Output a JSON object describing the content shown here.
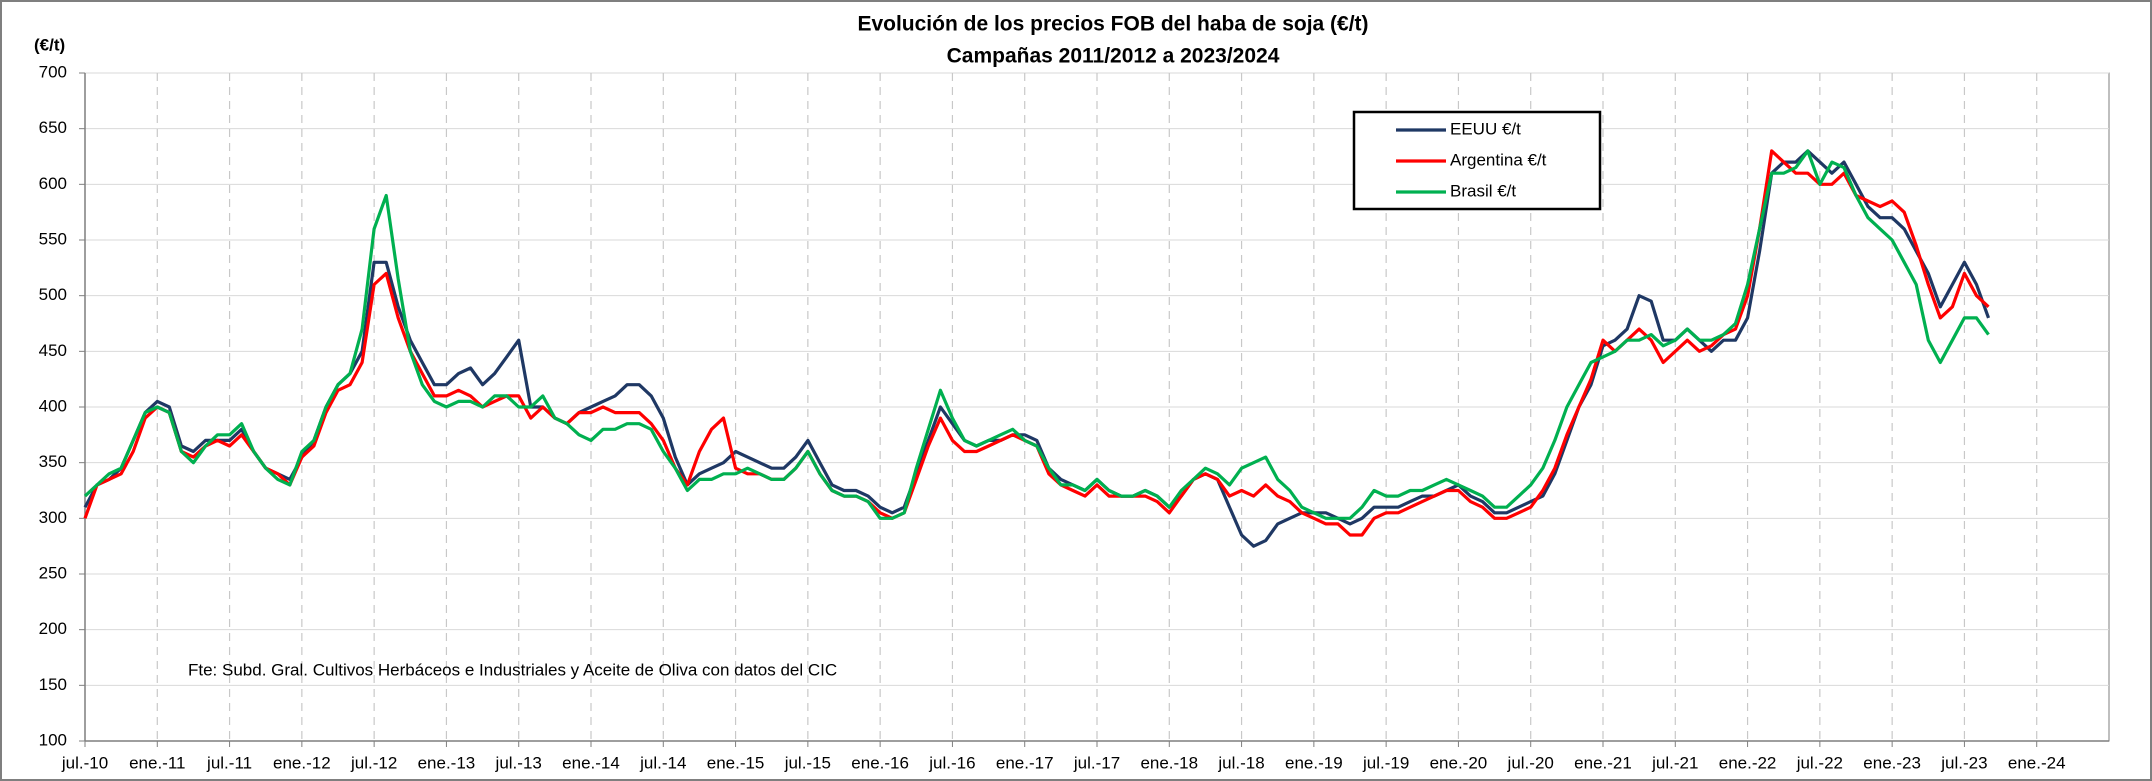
{
  "chart_data": {
    "type": "line",
    "title": "Evolución de los precios FOB del haba de soja (€/t)",
    "subtitle": "Campañas 2011/2012 a 2023/2024",
    "y_label": "(€/t)",
    "annotation": "Fte: Subd. Gral. Cultivos Herbáceos e Industriales y Aceite de Oliva con datos del CIC",
    "ylim": [
      100,
      700
    ],
    "yticks": [
      100,
      150,
      200,
      250,
      300,
      350,
      400,
      450,
      500,
      550,
      600,
      650,
      700
    ],
    "xlim": [
      "2010-07",
      "2024-07"
    ],
    "xticks": [
      {
        "value": "2010-07",
        "label": "jul.-10"
      },
      {
        "value": "2011-01",
        "label": "ene.-11"
      },
      {
        "value": "2011-07",
        "label": "jul.-11"
      },
      {
        "value": "2012-01",
        "label": "ene.-12"
      },
      {
        "value": "2012-07",
        "label": "jul.-12"
      },
      {
        "value": "2013-01",
        "label": "ene.-13"
      },
      {
        "value": "2013-07",
        "label": "jul.-13"
      },
      {
        "value": "2014-01",
        "label": "ene.-14"
      },
      {
        "value": "2014-07",
        "label": "jul.-14"
      },
      {
        "value": "2015-01",
        "label": "ene.-15"
      },
      {
        "value": "2015-07",
        "label": "jul.-15"
      },
      {
        "value": "2016-01",
        "label": "ene.-16"
      },
      {
        "value": "2016-07",
        "label": "jul.-16"
      },
      {
        "value": "2017-01",
        "label": "ene.-17"
      },
      {
        "value": "2017-07",
        "label": "jul.-17"
      },
      {
        "value": "2018-01",
        "label": "ene.-18"
      },
      {
        "value": "2018-07",
        "label": "jul.-18"
      },
      {
        "value": "2019-01",
        "label": "ene.-19"
      },
      {
        "value": "2019-07",
        "label": "jul.-19"
      },
      {
        "value": "2020-01",
        "label": "ene.-20"
      },
      {
        "value": "2020-07",
        "label": "jul.-20"
      },
      {
        "value": "2021-01",
        "label": "ene.-21"
      },
      {
        "value": "2021-07",
        "label": "jul.-21"
      },
      {
        "value": "2022-01",
        "label": "ene.-22"
      },
      {
        "value": "2022-07",
        "label": "jul.-22"
      },
      {
        "value": "2023-01",
        "label": "ene.-23"
      },
      {
        "value": "2023-07",
        "label": "jul.-23"
      },
      {
        "value": "2024-01",
        "label": "ene.-24"
      }
    ],
    "grid": true,
    "legend": "top-right",
    "x": [
      "2010-07",
      "2010-08",
      "2010-09",
      "2010-10",
      "2010-11",
      "2010-12",
      "2011-01",
      "2011-02",
      "2011-03",
      "2011-04",
      "2011-05",
      "2011-06",
      "2011-07",
      "2011-08",
      "2011-09",
      "2011-10",
      "2011-11",
      "2011-12",
      "2012-01",
      "2012-02",
      "2012-03",
      "2012-04",
      "2012-05",
      "2012-06",
      "2012-07",
      "2012-08",
      "2012-09",
      "2012-10",
      "2012-11",
      "2012-12",
      "2013-01",
      "2013-02",
      "2013-03",
      "2013-04",
      "2013-05",
      "2013-06",
      "2013-07",
      "2013-08",
      "2013-09",
      "2013-10",
      "2013-11",
      "2013-12",
      "2014-01",
      "2014-02",
      "2014-03",
      "2014-04",
      "2014-05",
      "2014-06",
      "2014-07",
      "2014-08",
      "2014-09",
      "2014-10",
      "2014-11",
      "2014-12",
      "2015-01",
      "2015-02",
      "2015-03",
      "2015-04",
      "2015-05",
      "2015-06",
      "2015-07",
      "2015-08",
      "2015-09",
      "2015-10",
      "2015-11",
      "2015-12",
      "2016-01",
      "2016-02",
      "2016-03",
      "2016-04",
      "2016-05",
      "2016-06",
      "2016-07",
      "2016-08",
      "2016-09",
      "2016-10",
      "2016-11",
      "2016-12",
      "2017-01",
      "2017-02",
      "2017-03",
      "2017-04",
      "2017-05",
      "2017-06",
      "2017-07",
      "2017-08",
      "2017-09",
      "2017-10",
      "2017-11",
      "2017-12",
      "2018-01",
      "2018-02",
      "2018-03",
      "2018-04",
      "2018-05",
      "2018-06",
      "2018-07",
      "2018-08",
      "2018-09",
      "2018-10",
      "2018-11",
      "2018-12",
      "2019-01",
      "2019-02",
      "2019-03",
      "2019-04",
      "2019-05",
      "2019-06",
      "2019-07",
      "2019-08",
      "2019-09",
      "2019-10",
      "2019-11",
      "2019-12",
      "2020-01",
      "2020-02",
      "2020-03",
      "2020-04",
      "2020-05",
      "2020-06",
      "2020-07",
      "2020-08",
      "2020-09",
      "2020-10",
      "2020-11",
      "2020-12",
      "2021-01",
      "2021-02",
      "2021-03",
      "2021-04",
      "2021-05",
      "2021-06",
      "2021-07",
      "2021-08",
      "2021-09",
      "2021-10",
      "2021-11",
      "2021-12",
      "2022-01",
      "2022-02",
      "2022-03",
      "2022-04",
      "2022-05",
      "2022-06",
      "2022-07",
      "2022-08",
      "2022-09",
      "2022-10",
      "2022-11",
      "2022-12",
      "2023-01",
      "2023-02",
      "2023-03",
      "2023-04",
      "2023-05",
      "2023-06",
      "2023-07",
      "2023-08",
      "2023-09"
    ],
    "series": [
      {
        "name": "EEUU €/t",
        "color": "#1f3864",
        "values": [
          310,
          330,
          335,
          345,
          370,
          395,
          405,
          400,
          365,
          360,
          370,
          370,
          370,
          380,
          360,
          345,
          340,
          335,
          355,
          370,
          400,
          420,
          430,
          450,
          530,
          530,
          490,
          460,
          440,
          420,
          420,
          430,
          435,
          420,
          430,
          445,
          460,
          400,
          400,
          390,
          385,
          395,
          400,
          405,
          410,
          420,
          420,
          410,
          390,
          355,
          330,
          340,
          345,
          350,
          360,
          355,
          350,
          345,
          345,
          355,
          370,
          350,
          330,
          325,
          325,
          320,
          310,
          305,
          310,
          340,
          370,
          400,
          385,
          370,
          365,
          370,
          370,
          375,
          375,
          370,
          345,
          335,
          330,
          325,
          335,
          325,
          320,
          320,
          325,
          320,
          310,
          320,
          335,
          340,
          335,
          310,
          285,
          275,
          280,
          295,
          300,
          305,
          305,
          305,
          300,
          295,
          300,
          310,
          310,
          310,
          315,
          320,
          320,
          325,
          330,
          320,
          315,
          305,
          305,
          310,
          315,
          320,
          340,
          370,
          400,
          420,
          455,
          460,
          470,
          500,
          495,
          460,
          460,
          470,
          460,
          450,
          460,
          460,
          480,
          540,
          610,
          620,
          620,
          630,
          620,
          610,
          620,
          600,
          580,
          570,
          570,
          560,
          540,
          520,
          490,
          510,
          530,
          510,
          480
        ]
      },
      {
        "name": "Argentina €/t",
        "color": "#ff0000",
        "values": [
          300,
          330,
          335,
          340,
          360,
          390,
          400,
          395,
          360,
          355,
          365,
          370,
          365,
          375,
          360,
          345,
          340,
          330,
          355,
          365,
          395,
          415,
          420,
          440,
          510,
          520,
          480,
          450,
          430,
          410,
          410,
          415,
          410,
          400,
          405,
          410,
          410,
          390,
          400,
          390,
          385,
          395,
          395,
          400,
          395,
          395,
          395,
          385,
          370,
          345,
          330,
          360,
          380,
          390,
          345,
          340,
          340,
          335,
          335,
          345,
          360,
          340,
          325,
          320,
          320,
          315,
          305,
          300,
          305,
          335,
          365,
          390,
          370,
          360,
          360,
          365,
          370,
          375,
          370,
          365,
          340,
          330,
          325,
          320,
          330,
          320,
          320,
          320,
          320,
          315,
          305,
          320,
          335,
          340,
          335,
          320,
          325,
          320,
          330,
          320,
          315,
          305,
          300,
          295,
          295,
          285,
          285,
          300,
          305,
          305,
          310,
          315,
          320,
          325,
          325,
          315,
          310,
          300,
          300,
          305,
          310,
          325,
          345,
          375,
          400,
          425,
          460,
          450,
          460,
          470,
          460,
          440,
          450,
          460,
          450,
          455,
          465,
          470,
          500,
          560,
          630,
          620,
          610,
          610,
          600,
          600,
          610,
          590,
          585,
          580,
          585,
          575,
          545,
          510,
          480,
          490,
          520,
          500,
          490
        ]
      },
      {
        "name": "Brasil €/t",
        "color": "#00b050",
        "values": [
          320,
          330,
          340,
          345,
          370,
          395,
          400,
          395,
          360,
          350,
          365,
          375,
          375,
          385,
          360,
          345,
          335,
          330,
          360,
          370,
          400,
          420,
          430,
          470,
          560,
          590,
          515,
          450,
          420,
          405,
          400,
          405,
          405,
          400,
          410,
          410,
          400,
          400,
          410,
          390,
          385,
          375,
          370,
          380,
          380,
          385,
          385,
          380,
          360,
          345,
          325,
          335,
          335,
          340,
          340,
          345,
          340,
          335,
          335,
          345,
          360,
          340,
          325,
          320,
          320,
          315,
          300,
          300,
          305,
          345,
          380,
          415,
          390,
          370,
          365,
          370,
          375,
          380,
          370,
          365,
          345,
          330,
          330,
          325,
          335,
          325,
          320,
          320,
          325,
          320,
          310,
          325,
          335,
          345,
          340,
          330,
          345,
          350,
          355,
          335,
          325,
          310,
          305,
          300,
          300,
          300,
          310,
          325,
          320,
          320,
          325,
          325,
          330,
          335,
          330,
          325,
          320,
          310,
          310,
          320,
          330,
          345,
          370,
          400,
          420,
          440,
          445,
          450,
          460,
          460,
          465,
          455,
          460,
          470,
          460,
          460,
          465,
          475,
          510,
          560,
          610,
          610,
          615,
          630,
          600,
          620,
          615,
          590,
          570,
          560,
          550,
          530,
          510,
          460,
          440,
          460,
          480,
          480,
          465
        ]
      }
    ]
  }
}
